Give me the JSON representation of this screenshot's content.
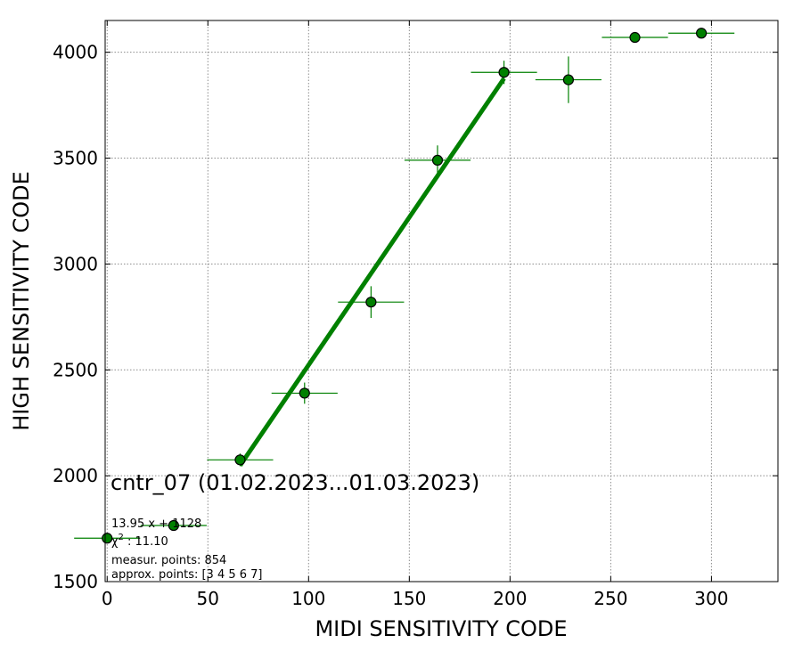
{
  "chart_data": {
    "type": "scatter",
    "xlabel": "MIDI SENSITIVITY CODE",
    "ylabel": "HIGH SENSITIVITY CODE",
    "xlim": [
      -1,
      333
    ],
    "ylim": [
      1500,
      4150
    ],
    "xticks": [
      0,
      50,
      100,
      150,
      200,
      250,
      300
    ],
    "yticks": [
      1500,
      2000,
      2500,
      3000,
      3500,
      4000
    ],
    "grid": true,
    "colors": {
      "marker": "#008000",
      "fit": "#008000",
      "edge": "#000000"
    },
    "points": [
      {
        "x": 0,
        "y": 1705,
        "xerr": 16.4,
        "yerr": 0
      },
      {
        "x": 33,
        "y": 1765,
        "xerr": 16.4,
        "yerr": 0
      },
      {
        "x": 66,
        "y": 2075,
        "xerr": 16.4,
        "yerr": 30
      },
      {
        "x": 98,
        "y": 2390,
        "xerr": 16.4,
        "yerr": 50
      },
      {
        "x": 131,
        "y": 2820,
        "xerr": 16.4,
        "yerr": 75
      },
      {
        "x": 164,
        "y": 3490,
        "xerr": 16.4,
        "yerr": 70
      },
      {
        "x": 197,
        "y": 3905,
        "xerr": 16.4,
        "yerr": 55
      },
      {
        "x": 229,
        "y": 3870,
        "xerr": 16.4,
        "yerr": 110
      },
      {
        "x": 262,
        "y": 4070,
        "xerr": 16.4,
        "yerr": 0
      },
      {
        "x": 295,
        "y": 4090,
        "xerr": 16.4,
        "yerr": 0
      }
    ],
    "fit": {
      "slope": 13.95,
      "intercept": 1128,
      "x_from": 66,
      "x_to": 197
    },
    "annotation": {
      "title": "cntr_07 (01.02.2023...01.03.2023)",
      "line1": "13.95 x + 1128",
      "line2_symbol": "χ",
      "line2_sup": "2",
      "line2_value": " : 11.10",
      "line3": "measur. points: 854",
      "line4": "approx. points: [3 4 5 6 7]"
    }
  }
}
